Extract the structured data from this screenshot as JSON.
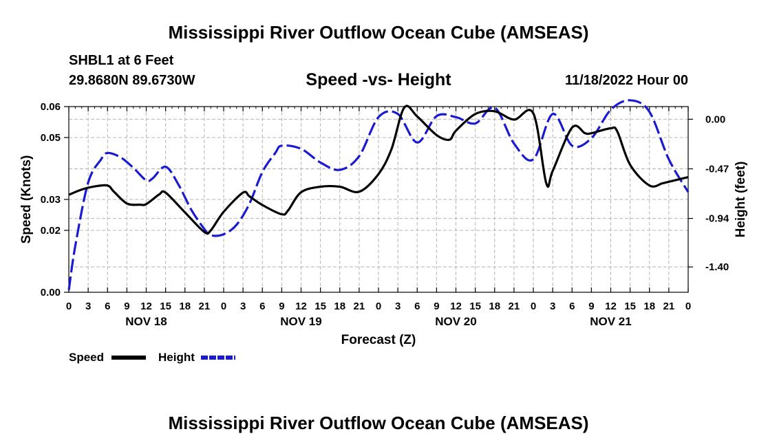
{
  "page": {
    "main_title": "Mississippi River Outflow Ocean Cube (AMSEAS)",
    "station": "SHBL1 at 6 Feet",
    "coords": "29.8680N  89.6730W",
    "run": "11/18/2022 Hour 00",
    "second_title": "Mississippi River Outflow Ocean Cube (AMSEAS)"
  },
  "legend": {
    "speed_label": "Speed",
    "height_label": "Height"
  },
  "colors": {
    "speed": "#000000",
    "height": "#1a1ad0",
    "grid": "#b4b4b4"
  },
  "chart_data": {
    "type": "line",
    "title": "Speed -vs- Height",
    "xlabel": "Forecast (Z)",
    "ylabel": "Speed (Knots)",
    "y2label": "Height (feet)",
    "xlim": [
      0,
      96
    ],
    "ylim": [
      0.0,
      0.06
    ],
    "y2lim": [
      -1.64,
      0.12
    ],
    "x_ticks": [
      0,
      3,
      6,
      9,
      12,
      15,
      18,
      21,
      24,
      27,
      30,
      33,
      36,
      39,
      42,
      45,
      48,
      51,
      54,
      57,
      60,
      63,
      66,
      69,
      72,
      75,
      78,
      81,
      84,
      87,
      90,
      93,
      96
    ],
    "x_tick_labels": [
      "0",
      "3",
      "6",
      "9",
      "12",
      "15",
      "18",
      "21",
      "0",
      "3",
      "6",
      "9",
      "12",
      "15",
      "18",
      "21",
      "0",
      "3",
      "6",
      "9",
      "12",
      "15",
      "18",
      "21",
      "0",
      "3",
      "6",
      "9",
      "12",
      "15",
      "18",
      "21",
      "0"
    ],
    "day_labels": [
      {
        "x": 12,
        "label": "NOV 18"
      },
      {
        "x": 36,
        "label": "NOV 19"
      },
      {
        "x": 60,
        "label": "NOV 20"
      },
      {
        "x": 84,
        "label": "NOV 21"
      }
    ],
    "y_ticks": [
      0.0,
      0.02,
      0.03,
      0.05,
      0.06
    ],
    "y_tick_labels": [
      "0.00",
      "0.02",
      "0.03",
      "0.05",
      "0.06"
    ],
    "y2_ticks": [
      0.0,
      -0.47,
      -0.94,
      -1.4
    ],
    "y2_tick_labels": [
      "0.00",
      "-0.47",
      "-0.94",
      "-1.40"
    ],
    "grid": true,
    "series": [
      {
        "name": "Speed",
        "axis": "left",
        "style": "solid",
        "x": [
          0,
          2,
          4,
          6,
          7,
          9,
          11,
          12,
          14,
          15,
          18,
          21,
          22,
          24,
          27,
          28,
          30,
          33,
          34,
          36,
          39,
          42,
          45,
          48,
          50,
          52,
          54,
          57,
          59,
          60,
          63,
          66,
          69,
          72,
          74,
          75,
          78,
          80,
          81,
          84,
          85,
          87,
          90,
          92,
          93,
          96
        ],
        "y": [
          0.0315,
          0.0332,
          0.0342,
          0.0345,
          0.0325,
          0.0287,
          0.0283,
          0.0285,
          0.0316,
          0.0322,
          0.0258,
          0.0195,
          0.02,
          0.026,
          0.0322,
          0.031,
          0.0282,
          0.0252,
          0.0265,
          0.0323,
          0.0341,
          0.0341,
          0.0325,
          0.0382,
          0.0462,
          0.0597,
          0.0568,
          0.0508,
          0.0493,
          0.0522,
          0.0576,
          0.0585,
          0.0558,
          0.0578,
          0.0352,
          0.0392,
          0.0532,
          0.0514,
          0.0514,
          0.053,
          0.052,
          0.0412,
          0.0345,
          0.0352,
          0.0357,
          0.0372
        ]
      },
      {
        "name": "Height",
        "axis": "right",
        "style": "dashed",
        "x": [
          0,
          1,
          3,
          5,
          6,
          8,
          10,
          12,
          13,
          15,
          17,
          19,
          21,
          22,
          24,
          26,
          28,
          30,
          32,
          33,
          36,
          39,
          42,
          45,
          48,
          51,
          54,
          57,
          60,
          63,
          66,
          69,
          72,
          75,
          78,
          81,
          84,
          87,
          90,
          93,
          96
        ],
        "y": [
          -1.62,
          -1.2,
          -0.6,
          -0.38,
          -0.32,
          -0.36,
          -0.46,
          -0.58,
          -0.56,
          -0.45,
          -0.62,
          -0.86,
          -1.04,
          -1.1,
          -1.09,
          -1.0,
          -0.8,
          -0.5,
          -0.32,
          -0.25,
          -0.28,
          -0.41,
          -0.48,
          -0.35,
          0.02,
          0.05,
          -0.22,
          0.03,
          0.02,
          -0.04,
          0.11,
          -0.23,
          -0.38,
          0.05,
          -0.25,
          -0.18,
          0.09,
          0.18,
          0.07,
          -0.38,
          -0.69
        ]
      }
    ]
  }
}
